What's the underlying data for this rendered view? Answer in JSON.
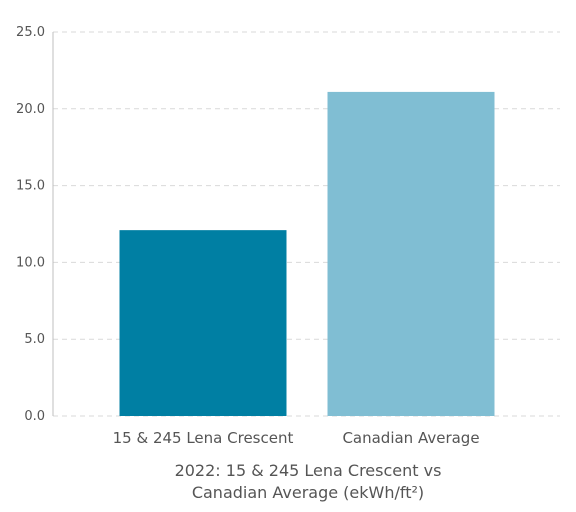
{
  "chart_data": {
    "type": "bar",
    "categories": [
      "15 & 245 Lena Crescent",
      "Canadian Average"
    ],
    "values": [
      12.1,
      21.1
    ],
    "colors": [
      "#007fa3",
      "#80bed3"
    ],
    "title_lines": [
      "2022: 15 & 245 Lena Crescent vs",
      "Canadian Average (ekWh/ft²)"
    ],
    "ylim": [
      0,
      25
    ],
    "yticks": [
      "0.0",
      "5.0",
      "10.0",
      "15.0",
      "20.0",
      "25.0"
    ],
    "ytick_values": [
      0,
      5,
      10,
      15,
      20,
      25
    ],
    "grid": true,
    "grid_color": "#d9d9d9"
  }
}
